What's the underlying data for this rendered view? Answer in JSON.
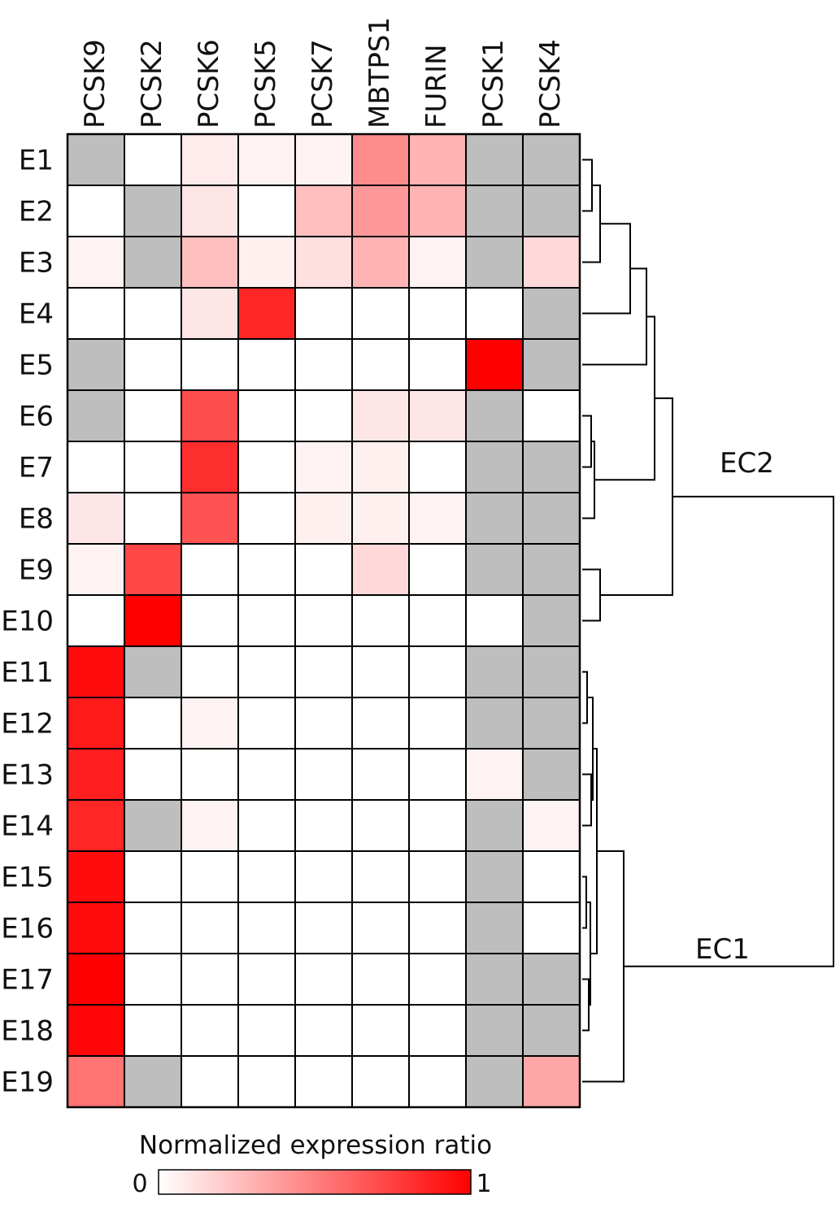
{
  "chart_data": {
    "type": "heatmap",
    "columns": [
      "PCSK9",
      "PCSK2",
      "PCSK6",
      "PCSK5",
      "PCSK7",
      "MBTPS1",
      "FURIN",
      "PCSK1",
      "PCSK4"
    ],
    "rows": [
      "E1",
      "E2",
      "E3",
      "E4",
      "E5",
      "E6",
      "E7",
      "E8",
      "E9",
      "E10",
      "E11",
      "E12",
      "E13",
      "E14",
      "E15",
      "E16",
      "E17",
      "E18",
      "E19"
    ],
    "values": [
      [
        null,
        0,
        0.08,
        0.05,
        0.05,
        0.45,
        0.3,
        null,
        null
      ],
      [
        0,
        null,
        0.1,
        0,
        0.25,
        0.4,
        0.3,
        null,
        null
      ],
      [
        0.05,
        null,
        0.25,
        0.06,
        0.12,
        0.3,
        0.05,
        null,
        0.15
      ],
      [
        0,
        0,
        0.1,
        0.85,
        0,
        0,
        0,
        0,
        null
      ],
      [
        null,
        0,
        0,
        0,
        0,
        0,
        0,
        1.0,
        null
      ],
      [
        null,
        0,
        0.7,
        0,
        0,
        0.1,
        0.1,
        null,
        0
      ],
      [
        0,
        0,
        0.82,
        0,
        0.05,
        0.06,
        0,
        null,
        null
      ],
      [
        0.1,
        0,
        0.68,
        0,
        0.06,
        0.06,
        0.05,
        null,
        null
      ],
      [
        0.05,
        0.72,
        0,
        0,
        0,
        0.15,
        0,
        null,
        null
      ],
      [
        0,
        1.0,
        0,
        0,
        0,
        0,
        0,
        0,
        null
      ],
      [
        0.95,
        null,
        0,
        0,
        0,
        0,
        0,
        null,
        null
      ],
      [
        0.9,
        0,
        0.05,
        0,
        0,
        0,
        0,
        null,
        null
      ],
      [
        0.88,
        0,
        0,
        0,
        0,
        0,
        0,
        0.05,
        null
      ],
      [
        0.85,
        null,
        0.05,
        0,
        0,
        0,
        0,
        null,
        0.05
      ],
      [
        0.95,
        0,
        0,
        0,
        0,
        0,
        0,
        null,
        0
      ],
      [
        0.95,
        0,
        0,
        0,
        0,
        0,
        0,
        null,
        0
      ],
      [
        1.0,
        0,
        0,
        0,
        0,
        0,
        0,
        null,
        null
      ],
      [
        0.98,
        0,
        0,
        0,
        0,
        0,
        0,
        null,
        null
      ],
      [
        0.55,
        null,
        0,
        0,
        0,
        0,
        0,
        null,
        0.35
      ]
    ],
    "colorscale": [
      "#ffffff",
      "#ff0000"
    ],
    "missing_color": "#bebebe",
    "clusters": [
      {
        "label": "EC2",
        "rows": [
          "E1",
          "E2",
          "E3",
          "E4",
          "E5",
          "E6",
          "E7",
          "E8",
          "E9",
          "E10"
        ]
      },
      {
        "label": "EC1",
        "rows": [
          "E11",
          "E12",
          "E13",
          "E14",
          "E15",
          "E16",
          "E17",
          "E18",
          "E19"
        ]
      }
    ],
    "colorbar": {
      "title": "Normalized expression ratio",
      "min_label": "0",
      "max_label": "1",
      "low_color": "#ffffff",
      "high_color": "#ff0000"
    },
    "dendrogram_position": "right"
  }
}
